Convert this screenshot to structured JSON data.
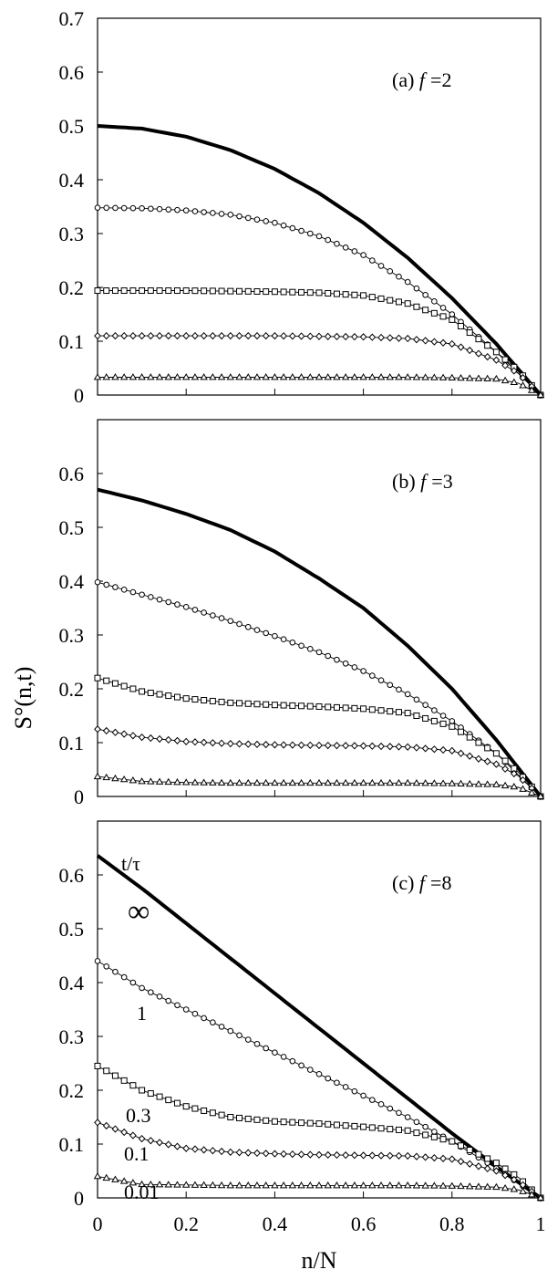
{
  "figure": {
    "ylabel": "S°(n,t)",
    "xlabel": "n/N",
    "legend_header": "t/τ"
  },
  "chart_data": [
    {
      "type": "line",
      "panel_label": "(a)",
      "f_label": "f",
      "f_value": "=2",
      "xlim": [
        0,
        1
      ],
      "ylim": [
        0,
        0.7
      ],
      "yticks": [
        "0",
        "0.1",
        "0.2",
        "0.3",
        "0.4",
        "0.5",
        "0.6",
        "0.7"
      ],
      "xticks": [
        0,
        0.2,
        0.4,
        0.6,
        0.8,
        1
      ],
      "x_tick_labels_shown": false,
      "series": [
        {
          "marker": "none",
          "t_over_tau": "∞",
          "x": [
            0,
            0.1,
            0.2,
            0.3,
            0.4,
            0.5,
            0.6,
            0.7,
            0.8,
            0.9,
            1.0
          ],
          "y": [
            0.5,
            0.495,
            0.48,
            0.455,
            0.42,
            0.375,
            0.32,
            0.255,
            0.18,
            0.095,
            0
          ]
        },
        {
          "marker": "circle",
          "t_over_tau": "1",
          "x": [
            0,
            0.1,
            0.2,
            0.3,
            0.4,
            0.5,
            0.6,
            0.7,
            0.8,
            0.9,
            1.0
          ],
          "y": [
            0.348,
            0.347,
            0.343,
            0.335,
            0.32,
            0.295,
            0.26,
            0.21,
            0.15,
            0.08,
            0
          ]
        },
        {
          "marker": "square",
          "t_over_tau": "0.3",
          "x": [
            0,
            0.1,
            0.2,
            0.3,
            0.4,
            0.5,
            0.6,
            0.7,
            0.8,
            0.9,
            0.95,
            1.0
          ],
          "y": [
            0.194,
            0.194,
            0.194,
            0.193,
            0.192,
            0.19,
            0.185,
            0.17,
            0.14,
            0.08,
            0.045,
            0
          ]
        },
        {
          "marker": "diamond",
          "t_over_tau": "0.1",
          "x": [
            0,
            0.1,
            0.2,
            0.3,
            0.4,
            0.5,
            0.6,
            0.7,
            0.8,
            0.9,
            0.95,
            1.0
          ],
          "y": [
            0.11,
            0.11,
            0.11,
            0.11,
            0.11,
            0.109,
            0.108,
            0.105,
            0.095,
            0.065,
            0.04,
            0
          ]
        },
        {
          "marker": "triangle",
          "t_over_tau": "0.01",
          "x": [
            0,
            0.1,
            0.2,
            0.3,
            0.4,
            0.5,
            0.6,
            0.7,
            0.8,
            0.9,
            0.95,
            1.0
          ],
          "y": [
            0.033,
            0.033,
            0.033,
            0.033,
            0.033,
            0.033,
            0.033,
            0.033,
            0.032,
            0.03,
            0.022,
            0
          ]
        }
      ]
    },
    {
      "type": "line",
      "panel_label": "(b)",
      "f_label": "f",
      "f_value": "=3",
      "xlim": [
        0,
        1
      ],
      "ylim": [
        0,
        0.7
      ],
      "yticks": [
        "0",
        "0.1",
        "0.2",
        "0.3",
        "0.4",
        "0.5",
        "0.6"
      ],
      "xticks": [
        0,
        0.2,
        0.4,
        0.6,
        0.8,
        1
      ],
      "x_tick_labels_shown": false,
      "series": [
        {
          "marker": "none",
          "t_over_tau": "∞",
          "x": [
            0,
            0.1,
            0.2,
            0.3,
            0.4,
            0.5,
            0.6,
            0.7,
            0.8,
            0.9,
            1.0
          ],
          "y": [
            0.57,
            0.55,
            0.525,
            0.495,
            0.455,
            0.405,
            0.35,
            0.28,
            0.2,
            0.105,
            0
          ]
        },
        {
          "marker": "circle",
          "t_over_tau": "1",
          "x": [
            0,
            0.1,
            0.2,
            0.3,
            0.4,
            0.5,
            0.6,
            0.7,
            0.8,
            0.9,
            1.0
          ],
          "y": [
            0.398,
            0.375,
            0.352,
            0.326,
            0.298,
            0.268,
            0.233,
            0.19,
            0.14,
            0.08,
            0
          ]
        },
        {
          "marker": "square",
          "t_over_tau": "0.3",
          "x": [
            0,
            0.1,
            0.2,
            0.3,
            0.4,
            0.5,
            0.6,
            0.7,
            0.8,
            0.9,
            0.95,
            1.0
          ],
          "y": [
            0.22,
            0.195,
            0.182,
            0.174,
            0.17,
            0.167,
            0.163,
            0.155,
            0.13,
            0.08,
            0.045,
            0
          ]
        },
        {
          "marker": "diamond",
          "t_over_tau": "0.1",
          "x": [
            0,
            0.1,
            0.2,
            0.3,
            0.4,
            0.5,
            0.6,
            0.7,
            0.8,
            0.9,
            0.95,
            1.0
          ],
          "y": [
            0.125,
            0.11,
            0.102,
            0.098,
            0.096,
            0.095,
            0.094,
            0.092,
            0.085,
            0.06,
            0.038,
            0
          ]
        },
        {
          "marker": "triangle",
          "t_over_tau": "0.01",
          "x": [
            0,
            0.1,
            0.2,
            0.3,
            0.4,
            0.5,
            0.6,
            0.7,
            0.8,
            0.9,
            0.95,
            1.0
          ],
          "y": [
            0.037,
            0.028,
            0.026,
            0.025,
            0.025,
            0.025,
            0.025,
            0.025,
            0.024,
            0.022,
            0.017,
            0
          ]
        }
      ]
    },
    {
      "type": "line",
      "panel_label": "(c)",
      "f_label": "f",
      "f_value": "=8",
      "xlim": [
        0,
        1
      ],
      "ylim": [
        0,
        0.7
      ],
      "yticks": [
        "0",
        "0.1",
        "0.2",
        "0.3",
        "0.4",
        "0.5",
        "0.6"
      ],
      "xticks": [
        0,
        0.2,
        0.4,
        0.6,
        0.8,
        1
      ],
      "xtick_labels": [
        "0",
        "0.2",
        "0.4",
        "0.6",
        "0.8",
        "1"
      ],
      "x_tick_labels_shown": true,
      "series": [
        {
          "marker": "none",
          "t_over_tau": "∞",
          "label_text": "∞",
          "x": [
            0,
            0.1,
            0.2,
            0.3,
            0.4,
            0.5,
            0.6,
            0.7,
            0.8,
            0.9,
            1.0
          ],
          "y": [
            0.636,
            0.575,
            0.51,
            0.445,
            0.38,
            0.315,
            0.25,
            0.185,
            0.12,
            0.058,
            0
          ]
        },
        {
          "marker": "circle",
          "t_over_tau": "1",
          "label_text": "1",
          "x": [
            0,
            0.1,
            0.2,
            0.3,
            0.4,
            0.5,
            0.6,
            0.7,
            0.8,
            0.9,
            1.0
          ],
          "y": [
            0.44,
            0.39,
            0.35,
            0.31,
            0.27,
            0.23,
            0.19,
            0.15,
            0.105,
            0.055,
            0
          ]
        },
        {
          "marker": "square",
          "t_over_tau": "0.3",
          "label_text": "0.3",
          "x": [
            0,
            0.1,
            0.2,
            0.3,
            0.4,
            0.5,
            0.6,
            0.7,
            0.8,
            0.9,
            0.95,
            1.0
          ],
          "y": [
            0.245,
            0.2,
            0.17,
            0.15,
            0.142,
            0.138,
            0.132,
            0.125,
            0.105,
            0.065,
            0.038,
            0
          ]
        },
        {
          "marker": "diamond",
          "t_over_tau": "0.1",
          "label_text": "0.1",
          "x": [
            0,
            0.1,
            0.2,
            0.3,
            0.4,
            0.5,
            0.6,
            0.7,
            0.8,
            0.9,
            0.95,
            1.0
          ],
          "y": [
            0.14,
            0.11,
            0.092,
            0.085,
            0.082,
            0.08,
            0.079,
            0.078,
            0.072,
            0.05,
            0.03,
            0
          ]
        },
        {
          "marker": "triangle",
          "t_over_tau": "0.01",
          "label_text": "0.01",
          "x": [
            0,
            0.1,
            0.2,
            0.3,
            0.4,
            0.5,
            0.6,
            0.7,
            0.8,
            0.9,
            0.95,
            1.0
          ],
          "y": [
            0.04,
            0.025,
            0.024,
            0.023,
            0.023,
            0.023,
            0.023,
            0.023,
            0.022,
            0.02,
            0.015,
            0
          ]
        }
      ]
    }
  ]
}
